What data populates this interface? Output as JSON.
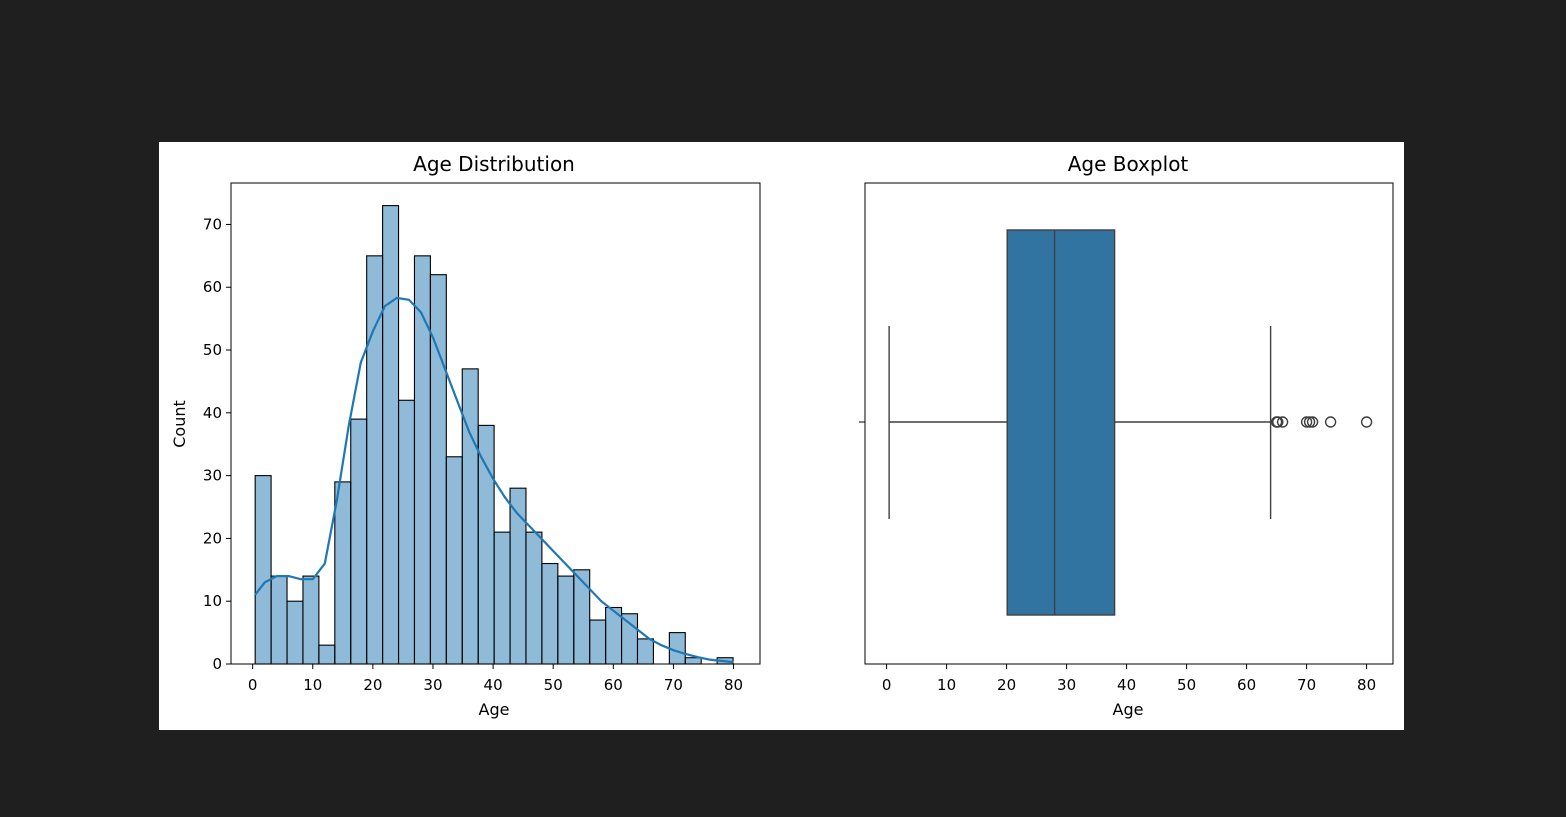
{
  "chart_data": [
    {
      "type": "histogram",
      "title": "Age Distribution",
      "xlabel": "Age",
      "ylabel": "Count",
      "xlim": [
        -3.6,
        84.4
      ],
      "ylim": [
        0,
        76.6
      ],
      "xticks": [
        0,
        10,
        20,
        30,
        40,
        50,
        60,
        70,
        80
      ],
      "yticks": [
        0,
        10,
        20,
        30,
        40,
        50,
        60,
        70
      ],
      "grid": false,
      "bin_start": 0.42,
      "bin_width": 2.65,
      "counts": [
        30,
        14,
        10,
        14,
        3,
        29,
        39,
        65,
        73,
        42,
        65,
        62,
        33,
        47,
        38,
        21,
        28,
        21,
        16,
        14,
        15,
        7,
        9,
        8,
        4,
        0,
        5,
        1,
        0,
        1
      ],
      "bar_color": "#1f77b4",
      "kde": {
        "color": "#1f77b4",
        "points": [
          [
            0.4,
            11
          ],
          [
            2,
            13
          ],
          [
            4,
            14
          ],
          [
            6,
            14
          ],
          [
            8,
            13.5
          ],
          [
            10,
            13.5
          ],
          [
            12,
            16
          ],
          [
            14,
            26
          ],
          [
            16,
            38
          ],
          [
            18,
            48
          ],
          [
            20,
            53
          ],
          [
            22,
            57
          ],
          [
            24,
            58.3
          ],
          [
            26,
            58
          ],
          [
            28,
            56
          ],
          [
            30,
            52
          ],
          [
            32,
            47
          ],
          [
            34,
            42
          ],
          [
            36,
            37
          ],
          [
            38,
            33
          ],
          [
            40,
            29.5
          ],
          [
            42,
            26.5
          ],
          [
            44,
            24
          ],
          [
            46,
            22
          ],
          [
            48,
            20
          ],
          [
            50,
            18
          ],
          [
            52,
            16
          ],
          [
            54,
            14
          ],
          [
            56,
            12
          ],
          [
            58,
            10
          ],
          [
            60,
            8.5
          ],
          [
            62,
            7
          ],
          [
            64,
            5.5
          ],
          [
            66,
            4
          ],
          [
            68,
            3
          ],
          [
            70,
            2.2
          ],
          [
            72,
            1.6
          ],
          [
            74,
            1.1
          ],
          [
            76,
            0.7
          ],
          [
            78,
            0.5
          ],
          [
            80,
            0.3
          ]
        ]
      }
    },
    {
      "type": "box",
      "title": "Age Boxplot",
      "xlabel": "Age",
      "xlim": [
        -3.6,
        84.4
      ],
      "xticks": [
        0,
        10,
        20,
        30,
        40,
        50,
        60,
        70,
        80
      ],
      "whisker_low": 0.42,
      "q1": 20.1,
      "median": 28,
      "q3": 38,
      "whisker_high": 64,
      "outliers": [
        65,
        65.2,
        66,
        70,
        70.5,
        71,
        74,
        80
      ],
      "box_color": "#3274a1"
    }
  ]
}
